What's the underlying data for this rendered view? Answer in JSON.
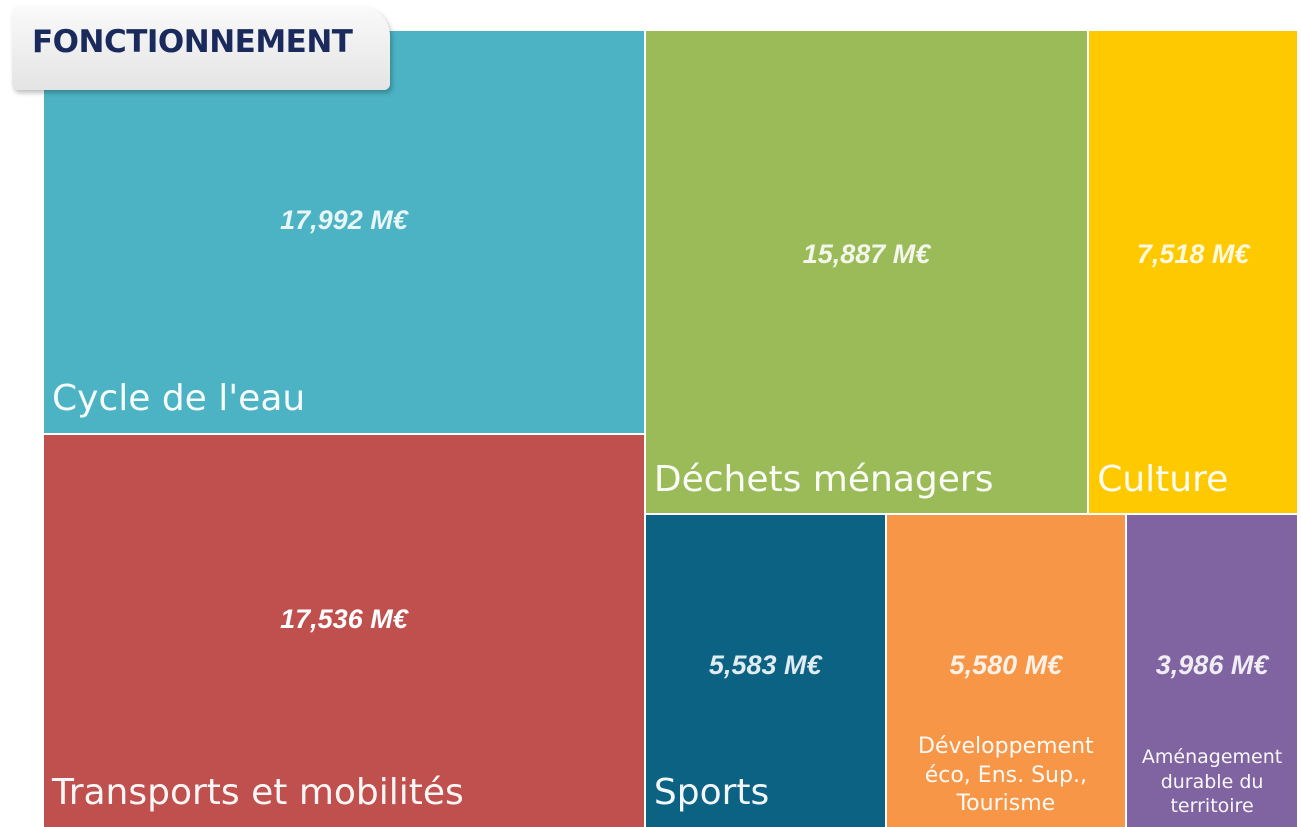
{
  "chart_data": {
    "type": "treemap",
    "title": "FONCTIONNEMENT",
    "categories": [
      "Cycle de l'eau",
      "Transports et mobilités",
      "Déchets ménagers",
      "Culture",
      "Sports",
      "Développement éco, Ens. Sup., Tourisme",
      "Aménagement durable du territoire"
    ],
    "values": [
      17.992,
      17.536,
      15.887,
      7.518,
      5.583,
      5.58,
      3.986
    ],
    "value_labels": [
      "17,992 M€",
      "17,536 M€",
      "15,887 M€",
      "7,518 M€",
      "5,583 M€",
      "5,580 M€",
      "3,986 M€"
    ],
    "colors": [
      "#4bb3c3",
      "#c0504d",
      "#9bbb59",
      "#ffc900",
      "#0b6282",
      "#f79646",
      "#8064a2"
    ]
  }
}
